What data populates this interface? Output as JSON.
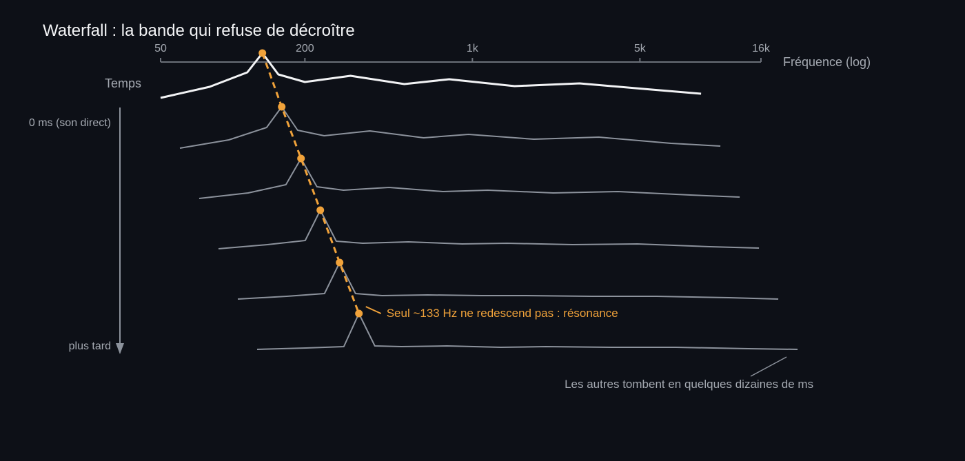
{
  "colors": {
    "background": "#0d1017",
    "first_slice": "#f2f3f5",
    "slices": "#8c929c",
    "axis": "#6b7079",
    "text": "#a4a9b1",
    "title": "#f2f3f5",
    "accent": "#f0a23a"
  },
  "chart_data": {
    "type": "line",
    "subtype": "waterfall",
    "title": "Waterfall : la bande qui refuse de décroître",
    "xlabel": "Fréquence (log)",
    "ylabel": "Temps",
    "x_scale": "log",
    "xlim": [
      50,
      16000
    ],
    "x_ticks": [
      {
        "value": 50,
        "label": "50"
      },
      {
        "value": 200,
        "label": "200"
      },
      {
        "value": 1000,
        "label": "1k"
      },
      {
        "value": 5000,
        "label": "5k"
      },
      {
        "value": 16000,
        "label": "16k"
      }
    ],
    "time_labels": {
      "start": "0 ms (son direct)",
      "end": "plus tard"
    },
    "x": [
      50,
      80,
      115,
      133,
      155,
      200,
      310,
      520,
      800,
      1500,
      2800,
      5600,
      9000
    ],
    "series": [
      {
        "values": [
          0.0,
          0.16,
          0.37,
          0.65,
          0.34,
          0.23,
          0.32,
          0.2,
          0.27,
          0.17,
          0.21,
          0.12,
          0.06
        ]
      },
      {
        "values": [
          0.0,
          0.12,
          0.3,
          0.6,
          0.26,
          0.18,
          0.25,
          0.15,
          0.2,
          0.13,
          0.16,
          0.07,
          0.03
        ]
      },
      {
        "values": [
          0.0,
          0.08,
          0.2,
          0.58,
          0.17,
          0.12,
          0.16,
          0.1,
          0.12,
          0.08,
          0.1,
          0.05,
          0.02
        ]
      },
      {
        "values": [
          0.0,
          0.06,
          0.12,
          0.56,
          0.11,
          0.08,
          0.1,
          0.07,
          0.08,
          0.06,
          0.07,
          0.03,
          0.01
        ]
      },
      {
        "values": [
          0.0,
          0.04,
          0.08,
          0.53,
          0.08,
          0.05,
          0.06,
          0.05,
          0.05,
          0.04,
          0.04,
          0.02,
          0.0
        ]
      },
      {
        "values": [
          0.0,
          0.02,
          0.04,
          0.52,
          0.05,
          0.04,
          0.05,
          0.03,
          0.04,
          0.03,
          0.03,
          0.01,
          0.0
        ]
      }
    ],
    "resonance": {
      "frequency": 133
    },
    "annotations": [
      {
        "id": "resonance",
        "text": "Seul ~133 Hz ne redescend pas : résonance"
      },
      {
        "id": "decay",
        "text": "Les autres tombent en quelques dizaines de ms"
      }
    ]
  }
}
